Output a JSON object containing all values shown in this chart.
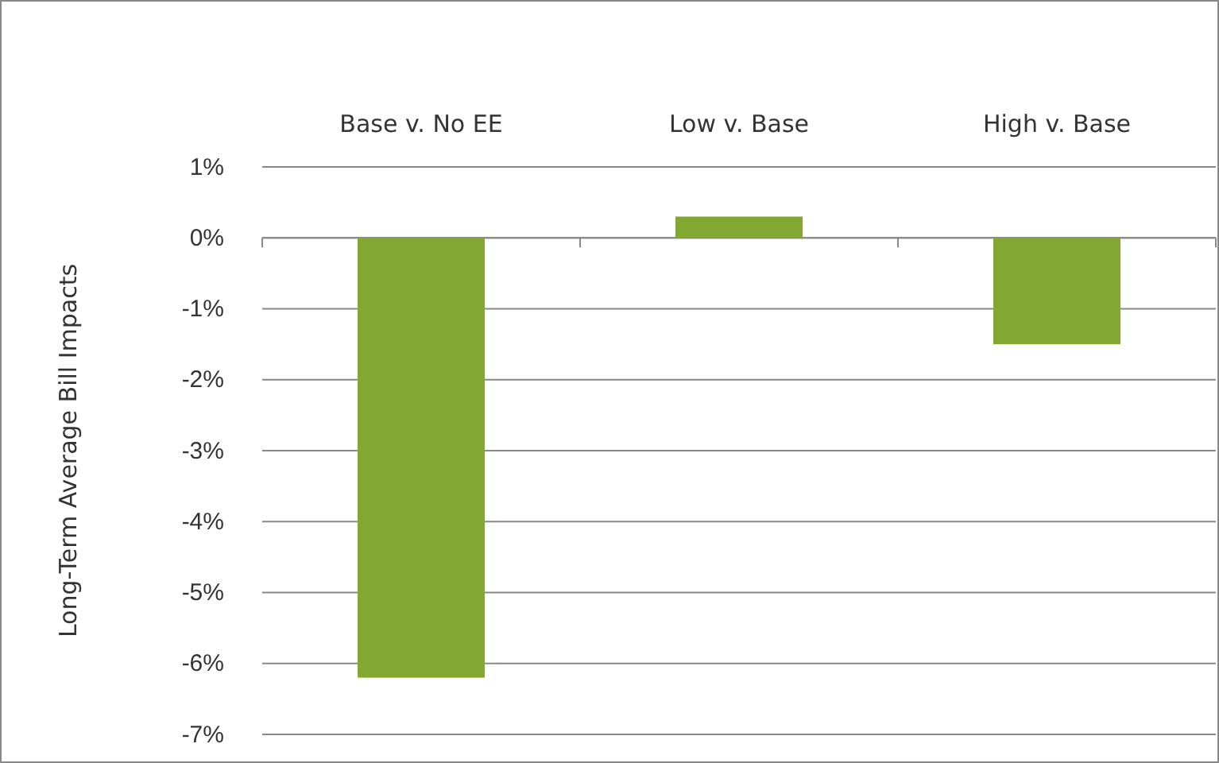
{
  "chart_data": {
    "type": "bar",
    "ylabel": "Long-Term Average Bill Impacts",
    "categories": [
      "Base v. No EE",
      "Low v. Base",
      "High v. Base"
    ],
    "values": [
      -6.2,
      0.3,
      -1.5
    ],
    "color": "#83a832",
    "ylim": [
      -7,
      1
    ],
    "yticks": [
      {
        "value": -7,
        "label": "-7%"
      },
      {
        "value": -6,
        "label": "-6%"
      },
      {
        "value": -5,
        "label": "-5%"
      },
      {
        "value": -4,
        "label": "-4%"
      },
      {
        "value": -3,
        "label": "-3%"
      },
      {
        "value": -2,
        "label": "-2%"
      },
      {
        "value": -1,
        "label": "-1%"
      },
      {
        "value": 0,
        "label": "0%"
      },
      {
        "value": 1,
        "label": "1%"
      }
    ],
    "grid": "y"
  }
}
